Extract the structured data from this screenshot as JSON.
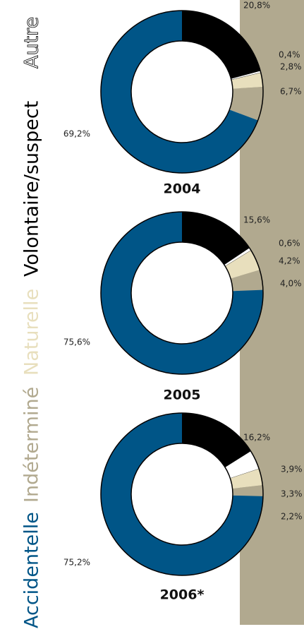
{
  "legend": {
    "labels": [
      "Accidentelle",
      "Indéterminé",
      "Naturelle",
      "Volontaire/suspect",
      "Autre"
    ],
    "colors": [
      "#005587",
      "#b1a98f",
      "#e8dfbd",
      "#000000",
      "#ffffff"
    ]
  },
  "chart_data": [
    {
      "type": "pie",
      "title": "2004",
      "values": [
        69.2,
        6.7,
        2.8,
        20.8,
        0.4
      ],
      "value_labels": [
        "69,2%",
        "6,7%",
        "2,8%",
        "20,8%",
        "0,4%"
      ]
    },
    {
      "type": "pie",
      "title": "2005",
      "values": [
        75.6,
        4.0,
        4.2,
        15.6,
        0.6
      ],
      "value_labels": [
        "75,6%",
        "4,0%",
        "4,2%",
        "15,6%",
        "0,6%"
      ]
    },
    {
      "type": "pie",
      "title": "2006*",
      "values": [
        75.2,
        2.2,
        3.3,
        16.2,
        3.9
      ],
      "value_labels": [
        "75,2%",
        "2,2%",
        "3,3%",
        "16,2%",
        "3,9%"
      ]
    }
  ]
}
